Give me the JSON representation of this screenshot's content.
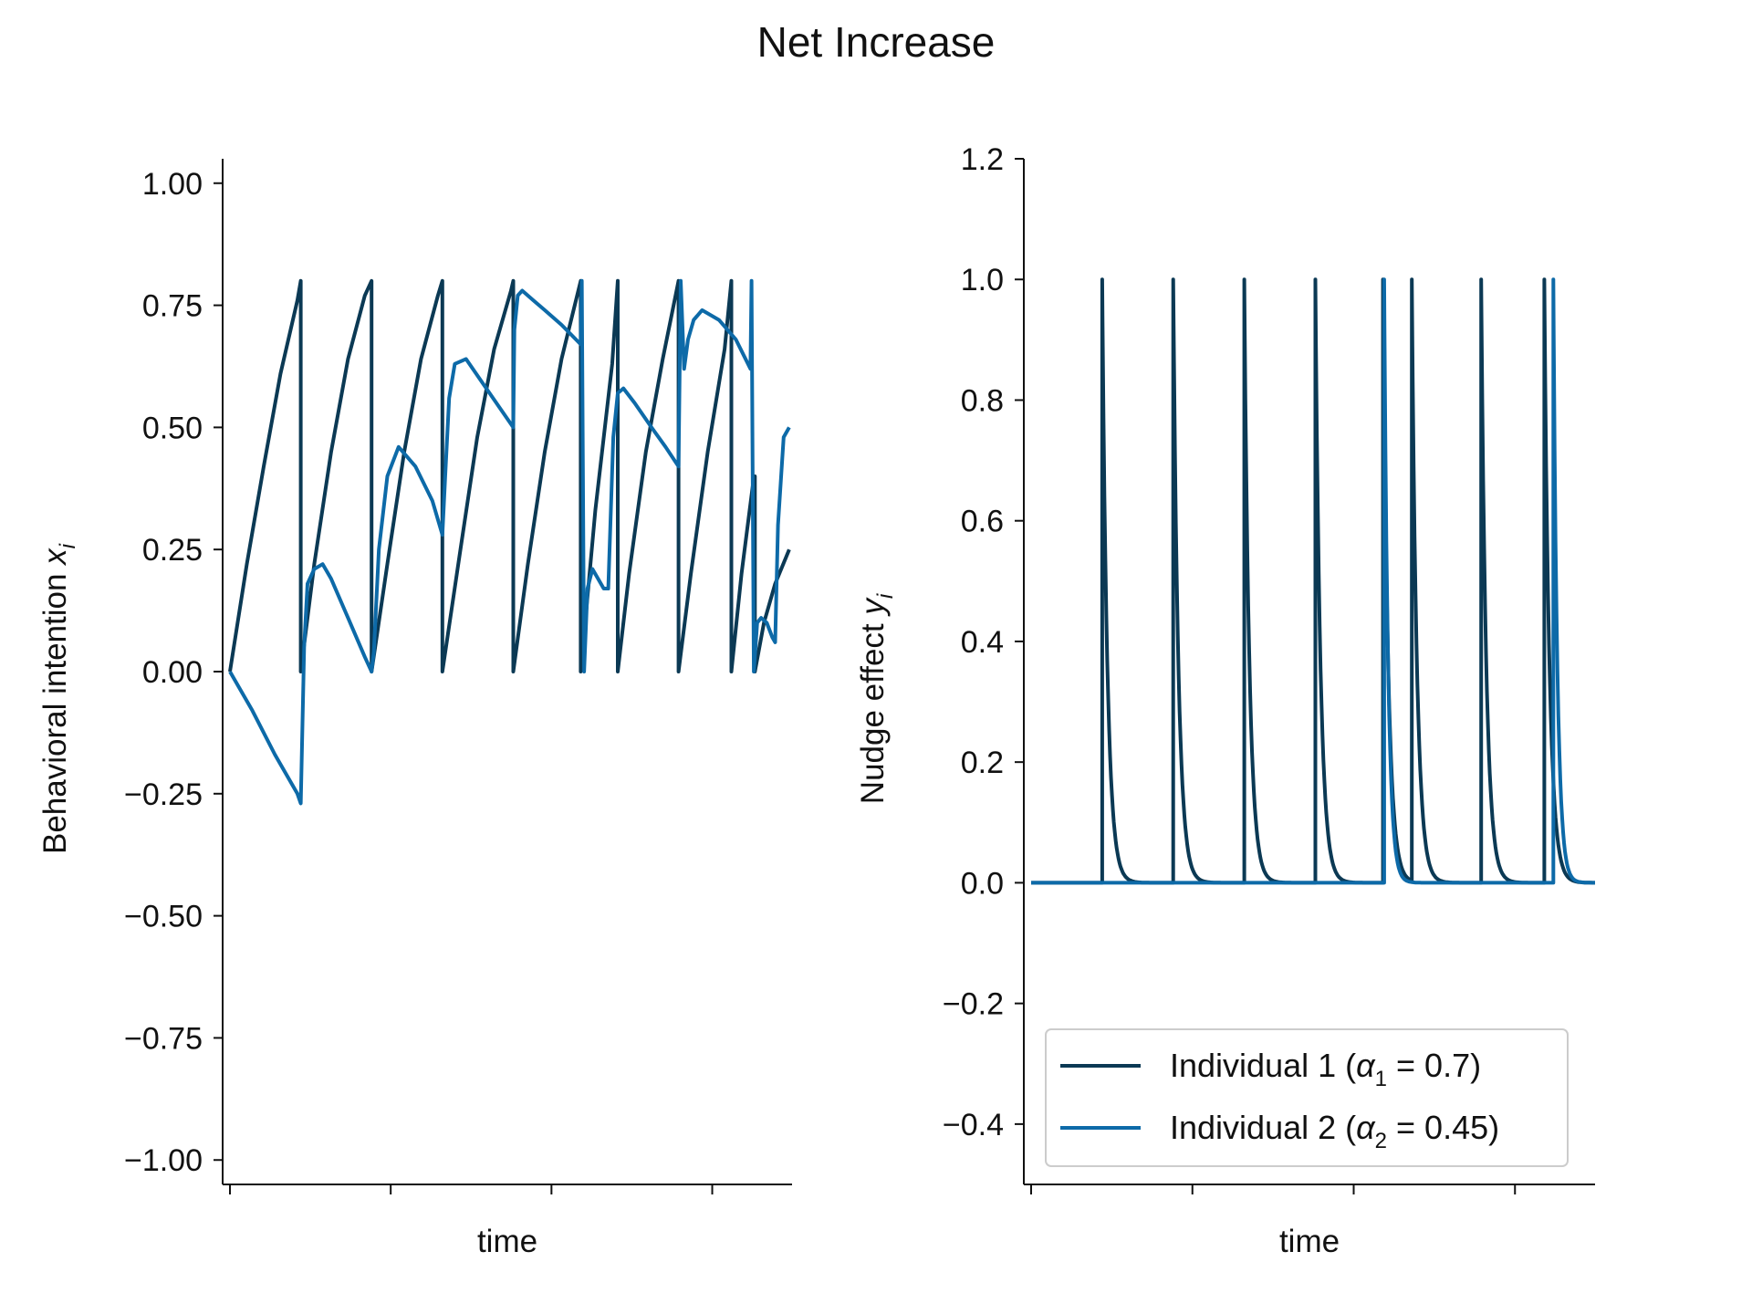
{
  "suptitle": "Net Increase",
  "colors": {
    "ind1": "#0b3954",
    "ind2": "#0d6aa8",
    "axis": "#111111"
  },
  "chart_data": [
    {
      "type": "line",
      "panel": "left",
      "xlabel": "time",
      "ylabel_main": "Behavioral intention ",
      "ylabel_var": "x",
      "ylabel_sub": "i",
      "xlim": [
        0,
        100
      ],
      "ylim": [
        -1.05,
        1.05
      ],
      "yticks": [
        -1.0,
        -0.75,
        -0.5,
        -0.25,
        0.0,
        0.25,
        0.5,
        0.75,
        1.0
      ],
      "ytick_labels": [
        "−1.00",
        "−0.75",
        "−0.50",
        "−0.25",
        "0.00",
        "0.25",
        "0.50",
        "0.75",
        "1.00"
      ],
      "xticks": [
        0,
        28.6,
        57.2,
        85.8
      ],
      "series": [
        {
          "name": "Individual 1",
          "color_key": "ind1",
          "x": [
            0,
            3,
            6,
            9,
            12,
            12.6,
            12.6,
            15,
            18,
            21,
            24,
            25.2,
            25.2,
            28,
            31,
            34,
            37,
            37.8,
            37.8,
            41,
            44,
            47,
            50,
            50.4,
            50.4,
            53,
            56,
            59,
            62.4,
            62.4,
            65,
            68,
            69.0,
            69.0,
            71,
            74,
            77,
            79.8,
            79.8,
            82,
            85,
            88,
            89.2,
            89.2,
            91,
            93,
            93.4,
            93.4,
            95,
            97,
            99.5
          ],
          "y": [
            0,
            0.22,
            0.42,
            0.61,
            0.76,
            0.8,
            0.0,
            0.22,
            0.45,
            0.64,
            0.77,
            0.8,
            0.0,
            0.22,
            0.45,
            0.64,
            0.77,
            0.8,
            0.0,
            0.25,
            0.48,
            0.66,
            0.78,
            0.8,
            0.0,
            0.22,
            0.45,
            0.64,
            0.8,
            0.0,
            0.33,
            0.63,
            0.8,
            0.0,
            0.2,
            0.45,
            0.64,
            0.8,
            0.0,
            0.2,
            0.45,
            0.66,
            0.8,
            0.0,
            0.2,
            0.38,
            0.4,
            0.0,
            0.1,
            0.18,
            0.25
          ]
        },
        {
          "name": "Individual 2",
          "color_key": "ind2",
          "x": [
            0,
            4,
            8,
            12,
            12.6,
            13.2,
            13.8,
            15,
            16.5,
            18,
            21,
            24,
            25.2,
            25.6,
            26.5,
            28,
            30,
            33,
            36,
            37.8,
            38.3,
            39,
            40,
            42,
            45,
            48,
            50.4,
            50.6,
            51.2,
            52,
            54,
            56,
            59,
            62.4,
            62.6,
            63.0,
            63.6,
            64.5,
            66.5,
            67.3,
            68.2,
            69.0,
            70,
            72,
            75,
            77.5,
            79.8,
            80.2,
            80.8,
            81.5,
            82.5,
            84,
            87,
            90,
            92.6,
            92.8,
            93.2,
            93.8,
            94.5,
            95.5,
            96.5,
            97,
            97.5,
            98.5,
            99.5
          ],
          "y": [
            0,
            -0.08,
            -0.17,
            -0.25,
            -0.27,
            0.05,
            0.18,
            0.21,
            0.22,
            0.19,
            0.11,
            0.03,
            0.0,
            0.04,
            0.25,
            0.4,
            0.46,
            0.42,
            0.35,
            0.28,
            0.4,
            0.56,
            0.63,
            0.64,
            0.59,
            0.54,
            0.5,
            0.7,
            0.77,
            0.78,
            0.76,
            0.74,
            0.71,
            0.67,
            0.8,
            0.0,
            0.17,
            0.21,
            0.17,
            0.17,
            0.48,
            0.57,
            0.58,
            0.55,
            0.5,
            0.46,
            0.42,
            0.8,
            0.62,
            0.68,
            0.72,
            0.74,
            0.72,
            0.68,
            0.62,
            0.8,
            0.0,
            0.1,
            0.11,
            0.1,
            0.07,
            0.06,
            0.3,
            0.48,
            0.5
          ]
        }
      ]
    },
    {
      "type": "line",
      "panel": "right",
      "xlabel": "time",
      "ylabel_main": "Nudge effect ",
      "ylabel_var": "y",
      "ylabel_sub": "i",
      "xlim": [
        0,
        100
      ],
      "ylim": [
        -0.5,
        1.2
      ],
      "yticks": [
        -0.4,
        -0.2,
        0.0,
        0.2,
        0.4,
        0.6,
        0.8,
        1.0,
        1.2
      ],
      "ytick_labels": [
        "−0.4",
        "−0.2",
        "0.0",
        "0.2",
        "0.4",
        "0.6",
        "0.8",
        "1.0",
        "1.2"
      ],
      "xticks": [
        0,
        28.6,
        57.2,
        85.8
      ],
      "series": [
        {
          "name": "Individual 1 (α1 = 0.7)",
          "color_key": "ind1",
          "spikes": [
            12.6,
            25.2,
            37.8,
            50.4,
            62.4,
            67.5,
            79.8,
            91.0
          ],
          "decay": 0.9
        },
        {
          "name": "Individual 2 (α2 = 0.45)",
          "color_key": "ind2",
          "spikes": [
            62.6,
            92.6
          ],
          "decay": 0.7
        }
      ],
      "legend": {
        "placement": "lower-right",
        "entries": [
          {
            "prefix": "Individual 1 (",
            "var": "α",
            "sub": "1",
            "suffix": " = 0.7)",
            "color_key": "ind1"
          },
          {
            "prefix": "Individual 2 (",
            "var": "α",
            "sub": "2",
            "suffix": " = 0.45)",
            "color_key": "ind2"
          }
        ]
      }
    }
  ]
}
